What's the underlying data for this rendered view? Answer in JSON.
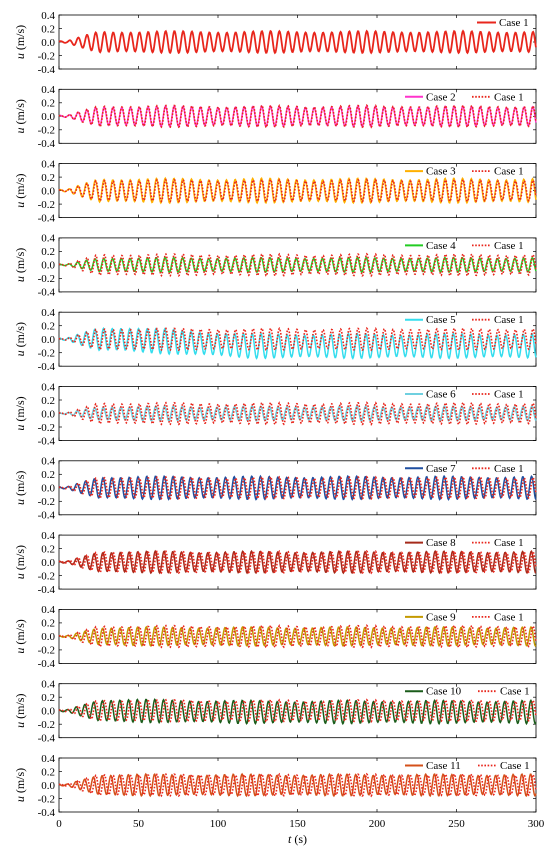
{
  "chart_data": {
    "type": "line",
    "xlabel": "t (s)",
    "xlabel_var": "t",
    "xlabel_unit": "(s)",
    "xlim": [
      0,
      300
    ],
    "xticks": [
      "0",
      "50",
      "100",
      "150",
      "200",
      "250",
      "300"
    ],
    "ylabel_var": "u",
    "ylabel_unit": "(m/s)",
    "ylim": [
      -0.4,
      0.4
    ],
    "yticks": [
      "0.4",
      "0.2",
      "0.0",
      "-0.2",
      "-0.4"
    ],
    "reference_series": {
      "name": "Case 1",
      "color": "#e8261c",
      "style": "dotted"
    },
    "signal_model": {
      "ramp_start": 5,
      "ramp_full": 25,
      "period_s": 5.5,
      "baseline": 0.0,
      "note_values": "u oscillates about ~0.0 with amplitude ~0.15 m/s after ramp-up"
    },
    "panels": [
      {
        "legend": [
          "Case 1"
        ],
        "series": [
          {
            "name": "Case 1",
            "color": "#e8261c",
            "style": "solid",
            "amplitude": 0.15,
            "offset": 0.0
          }
        ]
      },
      {
        "legend": [
          "Case 2",
          "Case 1"
        ],
        "series": [
          {
            "name": "Case 2",
            "color": "#ff33cc",
            "style": "solid",
            "amplitude": 0.14,
            "offset": 0.0
          }
        ]
      },
      {
        "legend": [
          "Case 3",
          "Case 1"
        ],
        "series": [
          {
            "name": "Case 3",
            "color": "#ffb000",
            "style": "solid",
            "amplitude": 0.17,
            "offset": 0.0
          }
        ]
      },
      {
        "legend": [
          "Case 4",
          "Case 1"
        ],
        "series": [
          {
            "name": "Case 4",
            "color": "#22cc22",
            "style": "solid",
            "amplitude": 0.1,
            "offset": 0.0
          }
        ]
      },
      {
        "legend": [
          "Case 5",
          "Case 1"
        ],
        "series": [
          {
            "name": "Case 5",
            "color": "#33ddee",
            "style": "solid",
            "amplitude": 0.17,
            "offset": -0.1
          }
        ]
      },
      {
        "legend": [
          "Case 6",
          "Case 1"
        ],
        "series": [
          {
            "name": "Case 6",
            "color": "#6fd0e0",
            "style": "solid",
            "amplitude": 0.1,
            "offset": 0.0
          }
        ]
      },
      {
        "legend": [
          "Case 7",
          "Case 1"
        ],
        "series": [
          {
            "name": "Case 7",
            "color": "#1f4fa0",
            "style": "solid",
            "amplitude": 0.16,
            "offset": 0.0
          }
        ]
      },
      {
        "legend": [
          "Case 8",
          "Case 1"
        ],
        "series": [
          {
            "name": "Case 8",
            "color": "#a52a1a",
            "style": "solid",
            "amplitude": 0.15,
            "offset": 0.0
          }
        ]
      },
      {
        "legend": [
          "Case 9",
          "Case 1"
        ],
        "series": [
          {
            "name": "Case 9",
            "color": "#c49a00",
            "style": "solid",
            "amplitude": 0.13,
            "offset": 0.0
          }
        ]
      },
      {
        "legend": [
          "Case 10",
          "Case 1"
        ],
        "series": [
          {
            "name": "Case 10",
            "color": "#1a5c1a",
            "style": "solid",
            "amplitude": 0.16,
            "offset": -0.02
          }
        ]
      },
      {
        "legend": [
          "Case 11",
          "Case 1"
        ],
        "series": [
          {
            "name": "Case 11",
            "color": "#d4501a",
            "style": "solid",
            "amplitude": 0.15,
            "offset": 0.0
          }
        ]
      }
    ]
  }
}
